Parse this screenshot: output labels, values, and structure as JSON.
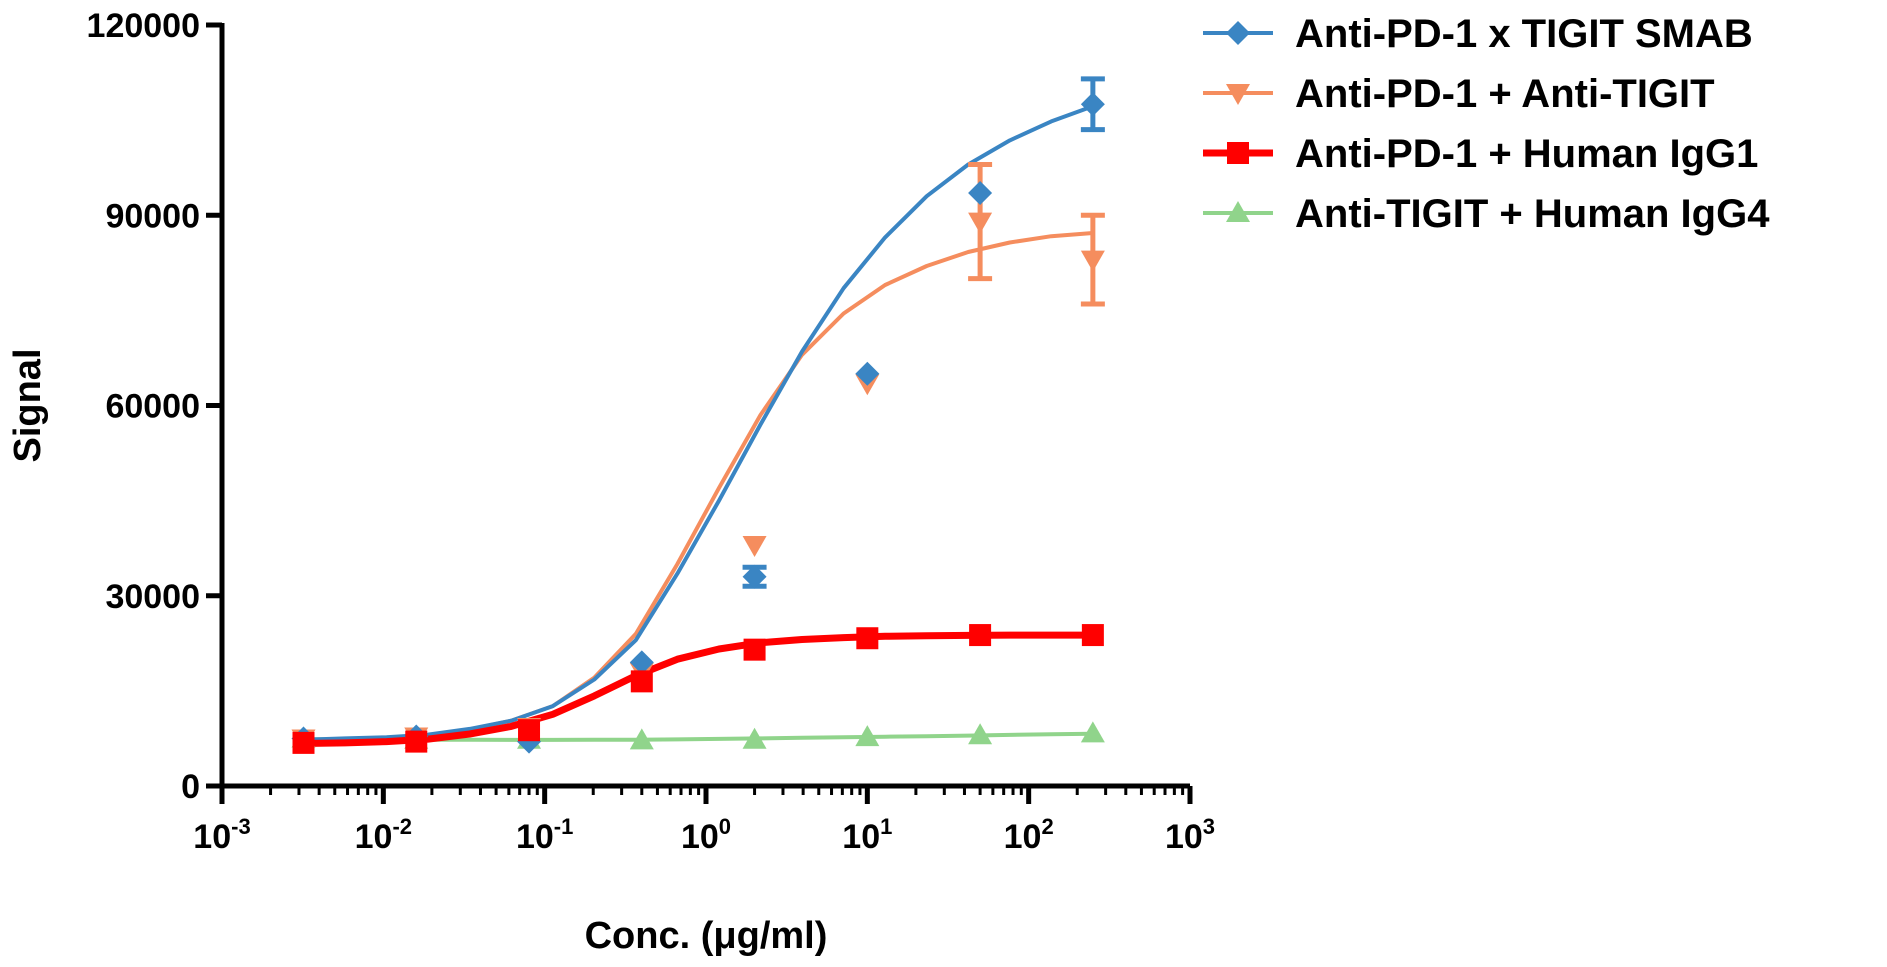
{
  "chart_data": {
    "type": "line",
    "xlabel": "Conc. (μg/ml)",
    "ylabel": "Signal",
    "xscale": "log",
    "xlim": [
      0.001,
      1000
    ],
    "ylim": [
      0,
      120000
    ],
    "yticks": [
      0,
      30000,
      60000,
      90000,
      120000
    ],
    "ytick_labels": [
      "0",
      "30000",
      "60000",
      "90000",
      "120000"
    ],
    "xticks": [
      0.001,
      0.01,
      0.1,
      1,
      10,
      100,
      1000
    ],
    "xtick_labels": [
      {
        "base": "10",
        "exp": "-3"
      },
      {
        "base": "10",
        "exp": "-2"
      },
      {
        "base": "10",
        "exp": "-1"
      },
      {
        "base": "10",
        "exp": "0"
      },
      {
        "base": "10",
        "exp": "1"
      },
      {
        "base": "10",
        "exp": "2"
      },
      {
        "base": "10",
        "exp": "3"
      }
    ],
    "legend_position": "top-right",
    "grid": false,
    "x": [
      0.0032,
      0.016,
      0.08,
      0.4,
      2,
      10,
      50,
      250
    ],
    "series": [
      {
        "name": "Anti-PD-1 x TIGIT SMAB",
        "color": "#3a85c3",
        "marker": "diamond",
        "values": [
          7500,
          7800,
          7000,
          19500,
          33000,
          65000,
          93500,
          107500
        ],
        "errors": [
          0,
          0,
          0,
          0,
          1500,
          0,
          0,
          4000
        ],
        "curve": [
          7300,
          7500,
          7700,
          8100,
          9000,
          10300,
          12600,
          16800,
          23000,
          33500,
          45000,
          57000,
          68500,
          78500,
          86500,
          93000,
          98000,
          101800,
          104800,
          107200
        ]
      },
      {
        "name": "Anti-PD-1 + Anti-TIGIT",
        "color": "#f58d5e",
        "marker": "triangle-down",
        "values": [
          7500,
          7800,
          9300,
          18000,
          38000,
          63500,
          89000,
          83000
        ],
        "errors": [
          0,
          0,
          0,
          0,
          0,
          0,
          9000,
          7000
        ],
        "curve": [
          7200,
          7400,
          7600,
          8000,
          8900,
          10300,
          12600,
          17100,
          24000,
          35000,
          47000,
          58500,
          68000,
          74500,
          79000,
          82000,
          84200,
          85700,
          86700,
          87200
        ]
      },
      {
        "name": "Anti-PD-1 + Human IgG1",
        "color": "#ff0000",
        "marker": "square",
        "values": [
          6800,
          7000,
          8800,
          16500,
          21500,
          23300,
          23800,
          23800
        ],
        "errors": [
          0,
          0,
          0,
          0,
          0,
          0,
          0,
          0
        ],
        "curve": [
          6700,
          6800,
          7000,
          7400,
          8200,
          9400,
          11300,
          14200,
          17400,
          20000,
          21600,
          22600,
          23100,
          23400,
          23600,
          23700,
          23750,
          23800,
          23800,
          23800
        ]
      },
      {
        "name": "Anti-TIGIT + Human IgG4",
        "color": "#90d48b",
        "marker": "triangle-up",
        "values": [
          7500,
          7300,
          7300,
          7200,
          7300,
          7700,
          8000,
          8300
        ],
        "errors": [
          0,
          0,
          0,
          0,
          0,
          0,
          0,
          0
        ],
        "curve": [
          7400,
          7350,
          7300,
          7300,
          7280,
          7270,
          7270,
          7280,
          7300,
          7350,
          7420,
          7500,
          7600,
          7700,
          7780,
          7860,
          7950,
          8050,
          8150,
          8250
        ]
      }
    ]
  }
}
